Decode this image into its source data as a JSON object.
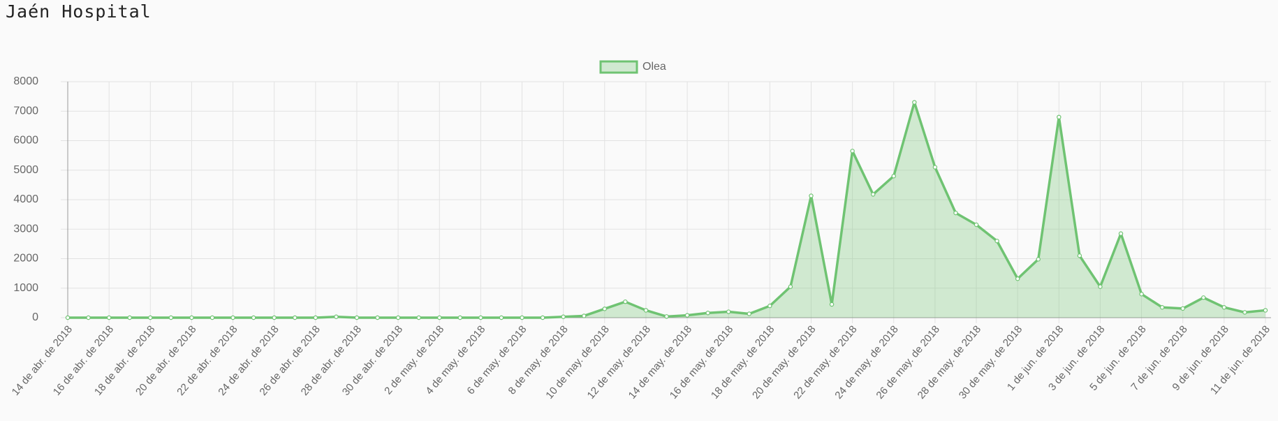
{
  "page_title": "Jaén Hospital",
  "chart_data": {
    "type": "line",
    "categories": [
      "14 de abr. de 2018",
      null,
      "16 de abr. de 2018",
      null,
      "18 de abr. de 2018",
      null,
      "20 de abr. de 2018",
      null,
      "22 de abr. de 2018",
      null,
      "24 de abr. de 2018",
      null,
      "26 de abr. de 2018",
      null,
      "28 de abr. de 2018",
      null,
      "30 de abr. de 2018",
      null,
      "2 de may. de 2018",
      null,
      "4 de may. de 2018",
      null,
      "6 de may. de 2018",
      null,
      "8 de may. de 2018",
      null,
      "10 de may. de 2018",
      null,
      "12 de may. de 2018",
      null,
      "14 de may. de 2018",
      null,
      "16 de may. de 2018",
      null,
      "18 de may. de 2018",
      null,
      "20 de may. de 2018",
      null,
      "22 de may. de 2018",
      null,
      "24 de may. de 2018",
      null,
      "26 de may. de 2018",
      null,
      "28 de may. de 2018",
      null,
      "30 de may. de 2018",
      null,
      "1 de jun. de 2018",
      null,
      "3 de jun. de 2018",
      null,
      "5 de jun. de 2018",
      null,
      "7 de jun. de 2018",
      null,
      "9 de jun. de 2018",
      null,
      "11 de jun. de 2018"
    ],
    "series": [
      {
        "name": "Olea",
        "color": "#6fc372",
        "values": [
          0,
          0,
          0,
          0,
          0,
          0,
          0,
          0,
          0,
          0,
          0,
          0,
          0,
          30,
          0,
          0,
          0,
          0,
          0,
          0,
          0,
          0,
          0,
          0,
          30,
          60,
          300,
          540,
          250,
          40,
          80,
          160,
          200,
          130,
          400,
          1050,
          4130,
          450,
          5650,
          4180,
          4800,
          7300,
          5100,
          3550,
          3150,
          2600,
          1320,
          1980,
          6800,
          2100,
          1050,
          2850,
          800,
          350,
          310,
          680,
          350,
          180,
          250
        ]
      }
    ],
    "ylim": [
      0,
      8000
    ],
    "yticks": [
      0,
      1000,
      2000,
      3000,
      4000,
      5000,
      6000,
      7000,
      8000
    ],
    "grid": true,
    "legend": "top"
  }
}
